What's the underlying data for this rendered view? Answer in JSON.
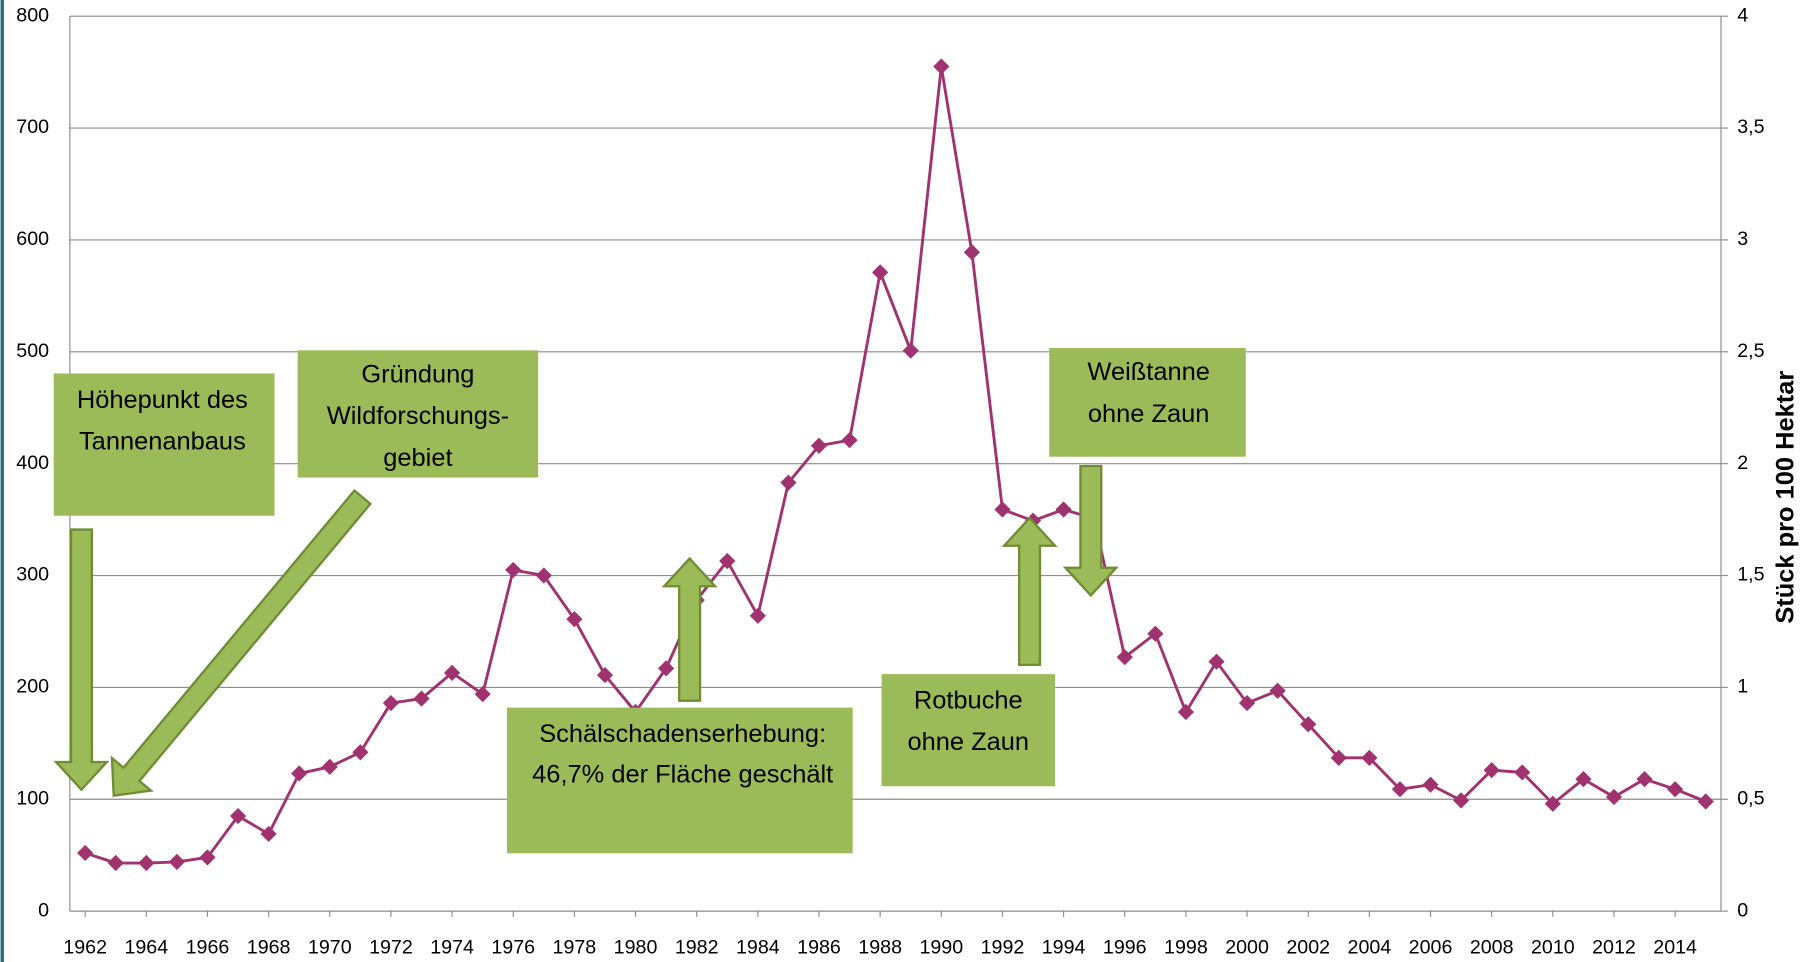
{
  "chart_data": {
    "type": "line",
    "y2_axis_label": "Stück pro 100 Hektar",
    "x": [
      1962,
      1963,
      1964,
      1965,
      1966,
      1967,
      1968,
      1969,
      1970,
      1971,
      1972,
      1973,
      1974,
      1975,
      1976,
      1977,
      1978,
      1979,
      1980,
      1981,
      1982,
      1983,
      1984,
      1985,
      1986,
      1987,
      1988,
      1989,
      1990,
      1991,
      1992,
      1993,
      1994,
      1995,
      1996,
      1997,
      1998,
      1999,
      2000,
      2001,
      2002,
      2003,
      2004,
      2005,
      2006,
      2007,
      2008,
      2009,
      2010,
      2011,
      2012,
      2013,
      2014,
      2015
    ],
    "series": [
      {
        "color": "#a0336f",
        "values": [
          52,
          43,
          43,
          44,
          48,
          85,
          69,
          123,
          129,
          142,
          186,
          190,
          213,
          194,
          305,
          300,
          261,
          211,
          178,
          217,
          278,
          313,
          264,
          383,
          416,
          421,
          571,
          501,
          755,
          589,
          359,
          349,
          359,
          351,
          227,
          248,
          178,
          223,
          186,
          197,
          167,
          137,
          137,
          109,
          113,
          99,
          126,
          124,
          96,
          118,
          102,
          118,
          109,
          98
        ]
      }
    ],
    "xlim": [
      1961.5,
      2015.5
    ],
    "xticks": [
      1962,
      1964,
      1966,
      1968,
      1970,
      1972,
      1974,
      1976,
      1978,
      1980,
      1982,
      1984,
      1986,
      1988,
      1990,
      1992,
      1994,
      1996,
      1998,
      2000,
      2002,
      2004,
      2006,
      2008,
      2010,
      2012,
      2014
    ],
    "ylim": [
      0,
      800
    ],
    "yticks": [
      0,
      100,
      200,
      300,
      400,
      500,
      600,
      700,
      800
    ],
    "y2lim": [
      0,
      4
    ],
    "y2ticks": [
      0,
      {
        "value": 0.5,
        "label": "0,5"
      },
      1,
      {
        "value": 1.5,
        "label": "1,5"
      },
      2,
      {
        "value": 2.5,
        "label": "2,5"
      },
      3,
      {
        "value": 3.5,
        "label": "3,5"
      },
      4
    ],
    "grid": true,
    "annotations": [
      {
        "lines": [
          "Höhepunkt des",
          "Tannenanbaus"
        ]
      },
      {
        "lines": [
          "Gründung",
          "Wildforschungs-",
          "gebiet"
        ]
      },
      {
        "lines": [
          "Schälschadenserhebung:",
          "46,7% der Fläche geschält"
        ]
      },
      {
        "lines": [
          "Rotbuche",
          "ohne Zaun"
        ]
      },
      {
        "lines": [
          "Weißtanne",
          "ohne Zaun"
        ]
      }
    ]
  }
}
